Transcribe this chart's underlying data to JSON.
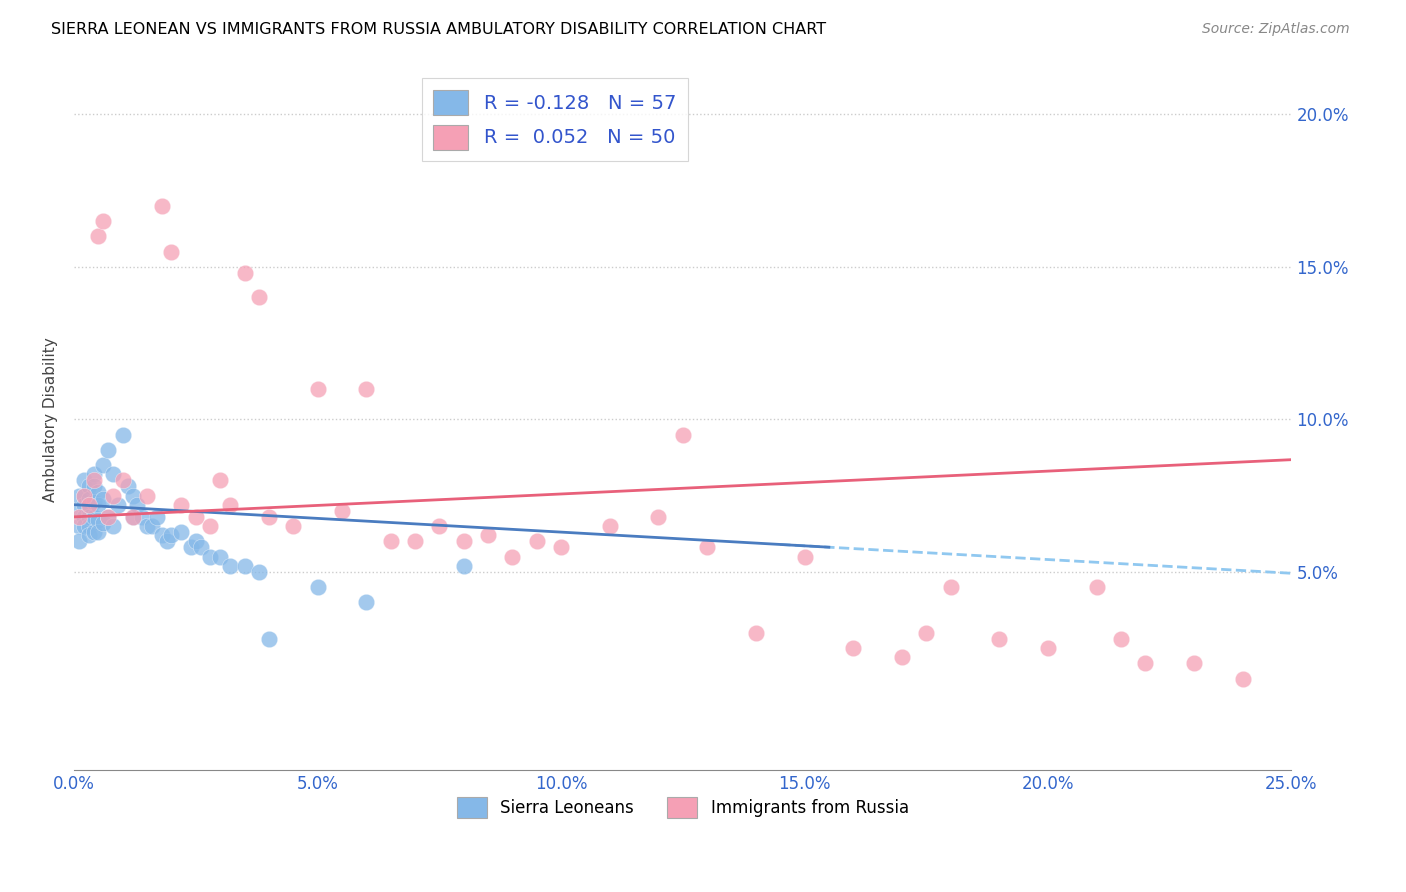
{
  "title": "SIERRA LEONEAN VS IMMIGRANTS FROM RUSSIA AMBULATORY DISABILITY CORRELATION CHART",
  "source": "Source: ZipAtlas.com",
  "ylabel": "Ambulatory Disability",
  "color_blue": "#85b8e8",
  "color_pink": "#f5a0b5",
  "line_blue": "#4a7cc0",
  "line_pink": "#e8607a",
  "line_dashed_color": "#90c8f0",
  "legend1_R": "R = -0.128",
  "legend1_N": "N = 57",
  "legend2_R": "R =  0.052",
  "legend2_N": "N = 50",
  "legend_sierra": "Sierra Leoneans",
  "legend_russia": "Immigrants from Russia",
  "xlim": [
    0.0,
    0.25
  ],
  "ylim": [
    -0.015,
    0.215
  ],
  "xtick_vals": [
    0.0,
    0.05,
    0.1,
    0.15,
    0.2,
    0.25
  ],
  "ytick_vals": [
    0.05,
    0.1,
    0.15,
    0.2
  ],
  "sierra_x": [
    0.001,
    0.001,
    0.001,
    0.001,
    0.002,
    0.002,
    0.002,
    0.002,
    0.002,
    0.003,
    0.003,
    0.003,
    0.003,
    0.003,
    0.003,
    0.004,
    0.004,
    0.004,
    0.004,
    0.004,
    0.005,
    0.005,
    0.005,
    0.005,
    0.006,
    0.006,
    0.006,
    0.007,
    0.007,
    0.008,
    0.008,
    0.009,
    0.01,
    0.011,
    0.012,
    0.012,
    0.013,
    0.014,
    0.015,
    0.016,
    0.017,
    0.018,
    0.019,
    0.02,
    0.022,
    0.024,
    0.025,
    0.026,
    0.028,
    0.03,
    0.032,
    0.035,
    0.038,
    0.04,
    0.05,
    0.06,
    0.08
  ],
  "sierra_y": [
    0.075,
    0.07,
    0.065,
    0.06,
    0.08,
    0.075,
    0.072,
    0.068,
    0.065,
    0.078,
    0.074,
    0.07,
    0.068,
    0.065,
    0.062,
    0.082,
    0.078,
    0.073,
    0.068,
    0.063,
    0.076,
    0.072,
    0.067,
    0.063,
    0.085,
    0.074,
    0.066,
    0.09,
    0.068,
    0.082,
    0.065,
    0.072,
    0.095,
    0.078,
    0.075,
    0.068,
    0.072,
    0.068,
    0.065,
    0.065,
    0.068,
    0.062,
    0.06,
    0.062,
    0.063,
    0.058,
    0.06,
    0.058,
    0.055,
    0.055,
    0.052,
    0.052,
    0.05,
    0.028,
    0.045,
    0.04,
    0.052
  ],
  "russia_x": [
    0.001,
    0.002,
    0.003,
    0.004,
    0.005,
    0.006,
    0.007,
    0.008,
    0.01,
    0.012,
    0.015,
    0.018,
    0.02,
    0.022,
    0.025,
    0.028,
    0.03,
    0.032,
    0.035,
    0.038,
    0.04,
    0.045,
    0.05,
    0.055,
    0.06,
    0.065,
    0.07,
    0.075,
    0.08,
    0.085,
    0.09,
    0.095,
    0.1,
    0.11,
    0.12,
    0.125,
    0.13,
    0.14,
    0.15,
    0.16,
    0.17,
    0.175,
    0.18,
    0.19,
    0.2,
    0.21,
    0.215,
    0.22,
    0.23,
    0.24
  ],
  "russia_y": [
    0.068,
    0.075,
    0.072,
    0.08,
    0.16,
    0.165,
    0.068,
    0.075,
    0.08,
    0.068,
    0.075,
    0.17,
    0.155,
    0.072,
    0.068,
    0.065,
    0.08,
    0.072,
    0.148,
    0.14,
    0.068,
    0.065,
    0.11,
    0.07,
    0.11,
    0.06,
    0.06,
    0.065,
    0.06,
    0.062,
    0.055,
    0.06,
    0.058,
    0.065,
    0.068,
    0.095,
    0.058,
    0.03,
    0.055,
    0.025,
    0.022,
    0.03,
    0.045,
    0.028,
    0.025,
    0.045,
    0.028,
    0.02,
    0.02,
    0.015
  ]
}
